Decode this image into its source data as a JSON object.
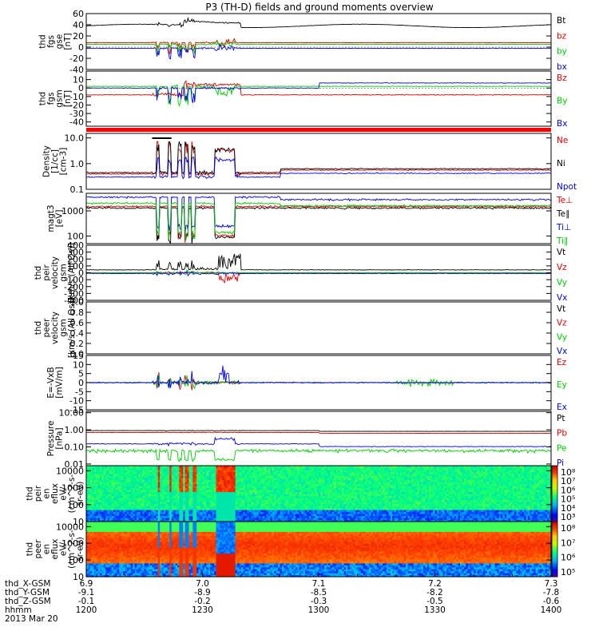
{
  "title": "P3 (TH-D) fields and ground moments overview",
  "colors": {
    "black": "#000000",
    "red": "#e00000",
    "green": "#00cc00",
    "blue": "#0000ee"
  },
  "chart_data": [
    {
      "id": "fgs_gse",
      "type": "line",
      "ylabel": [
        "thd",
        "fgs",
        "gse",
        "[nT]"
      ],
      "yscale": "linear",
      "ylim": [
        -40,
        60
      ],
      "yticks": [
        60,
        40,
        20,
        0,
        -20,
        -40
      ],
      "yticklabels": [
        "60",
        "40",
        "20",
        "0",
        "-20",
        "-40"
      ],
      "series": [
        {
          "name": "Bt",
          "color": "#000000",
          "base": 38
        },
        {
          "name": "bz",
          "color": "#e00000",
          "base": 8
        },
        {
          "name": "by",
          "color": "#00cc00",
          "base": 5
        },
        {
          "name": "bx",
          "color": "#0000ee",
          "base": -2
        }
      ],
      "legend": [
        "Bt",
        "bz",
        "by",
        "bx"
      ]
    },
    {
      "id": "fgs_gsm",
      "type": "line",
      "ylabel": [
        "thd",
        "fgs",
        "gsm",
        "[nT]"
      ],
      "yscale": "linear",
      "ylim": [
        -45,
        20
      ],
      "yticks": [
        10,
        0,
        -10,
        -20,
        -30,
        -40
      ],
      "yticklabels": [
        "10",
        "0",
        "-10",
        "-20",
        "-30",
        "-40"
      ],
      "series": [
        {
          "name": "Bz",
          "color": "#e00000",
          "base": -8
        },
        {
          "name": "By",
          "color": "#00cc00",
          "base": 2
        },
        {
          "name": "Bx",
          "color": "#0000ee",
          "base": 0
        }
      ],
      "legend": [
        "Bz",
        "By",
        "Bx"
      ]
    },
    {
      "id": "density",
      "type": "line",
      "ylabel": [
        "Density",
        "[1/cc]",
        "[cm-3]"
      ],
      "yscale": "log",
      "ylim": [
        0.1,
        15
      ],
      "yticks": [
        10,
        1,
        0.1
      ],
      "yticklabels": [
        "10.0",
        "1.0",
        "0.1"
      ],
      "series": [
        {
          "name": "Ne",
          "color": "#e00000",
          "base": 0.4
        },
        {
          "name": "Ni",
          "color": "#000000",
          "base": 0.45
        },
        {
          "name": "Npot",
          "color": "#0000ee",
          "base": 0.3
        }
      ],
      "legend": [
        "Ne",
        "Ni",
        "Npot"
      ]
    },
    {
      "id": "temperature",
      "type": "line",
      "ylabel": [
        "magt3",
        "[eV]"
      ],
      "yscale": "log",
      "ylim": [
        50,
        5000
      ],
      "yticks": [
        1000,
        100
      ],
      "yticklabels": [
        "1000",
        "100"
      ],
      "series": [
        {
          "name": "Te⊥",
          "color": "#e00000",
          "base": 1500
        },
        {
          "name": "Te∥",
          "color": "#000000",
          "base": 1300
        },
        {
          "name": "Ti⊥",
          "color": "#0000ee",
          "base": 3500
        },
        {
          "name": "Ti∥",
          "color": "#00cc00",
          "base": 2000
        }
      ],
      "legend": [
        "Te⊥",
        "Te∥",
        "Ti⊥",
        "Ti∥"
      ]
    },
    {
      "id": "peir_velocity",
      "type": "line",
      "ylabel": [
        "thd",
        "peir",
        "velocity",
        "gsm",
        "[km/s (All Qs)]"
      ],
      "yscale": "linear",
      "ylim": [
        -400,
        400
      ],
      "yticks": [
        400,
        300,
        200,
        100,
        0,
        -100,
        -200,
        -300,
        -400
      ],
      "yticklabels": [
        "400",
        "300",
        "200",
        "100",
        "0",
        "-100",
        "-200",
        "-300",
        "-400"
      ],
      "series": [
        {
          "name": "Vt",
          "color": "#000000",
          "base": 50
        },
        {
          "name": "Vz",
          "color": "#e00000",
          "base": 0
        },
        {
          "name": "Vy",
          "color": "#00cc00",
          "base": 0
        },
        {
          "name": "Vx",
          "color": "#0000ee",
          "base": -10
        }
      ],
      "legend": [
        "Vt",
        "Vz",
        "Vy",
        "Vx"
      ]
    },
    {
      "id": "peer_velocity",
      "type": "line",
      "ylabel": [
        "thd",
        "peer",
        "velocity",
        "gsm",
        "[km/s (All Qs)]"
      ],
      "yscale": "linear",
      "ylim": [
        0,
        1
      ],
      "yticks": [
        1,
        0.8,
        0.6,
        0.4,
        0.2,
        0
      ],
      "yticklabels": [
        "1.0",
        "0.8",
        "0.6",
        "0.4",
        "0.2",
        "0.0"
      ],
      "series": [],
      "legend": [
        "Vt",
        "Vz",
        "Vy",
        "Vx"
      ]
    },
    {
      "id": "efield",
      "type": "line",
      "ylabel": [
        "E=-VxB",
        "[mV/m]"
      ],
      "yscale": "linear",
      "ylim": [
        -15,
        15
      ],
      "yticks": [
        15,
        10,
        5,
        0,
        -5,
        -10,
        -15
      ],
      "yticklabels": [
        "15",
        "10",
        "5",
        "0",
        "-5",
        "-10",
        "-15"
      ],
      "series": [
        {
          "name": "Ez",
          "color": "#e00000",
          "base": 0
        },
        {
          "name": "Ey",
          "color": "#00cc00",
          "base": 0
        },
        {
          "name": "Ex",
          "color": "#0000ee",
          "base": 0
        }
      ],
      "legend": [
        "Ez",
        "Ey",
        "Ex"
      ]
    },
    {
      "id": "pressure",
      "type": "line",
      "ylabel": [
        "Pressure",
        "[nPa]"
      ],
      "yscale": "log",
      "ylim": [
        0.008,
        12
      ],
      "yticks": [
        10,
        1,
        0.1,
        0.01
      ],
      "yticklabels": [
        "10.00",
        "1.00",
        "0.10",
        "0.01"
      ],
      "series": [
        {
          "name": "Pt",
          "color": "#000000",
          "base": 0.9
        },
        {
          "name": "Pb",
          "color": "#e00000",
          "base": 0.7
        },
        {
          "name": "Pe",
          "color": "#00cc00",
          "base": 0.06
        },
        {
          "name": "Pi",
          "color": "#0000ee",
          "base": 0.15
        }
      ],
      "legend": [
        "Pt",
        "Pb",
        "Pe",
        "Pi"
      ]
    },
    {
      "id": "peir_spec",
      "type": "heatmap",
      "ylabel": [
        "thd",
        "peir",
        "en",
        "eflux",
        "eV/",
        "(cm^2-s-",
        "sr-eV)"
      ],
      "yscale": "log",
      "ylim": [
        10,
        20000
      ],
      "yticks": [
        10000,
        1000,
        100,
        10
      ],
      "yticklabels": [
        "10000",
        "1000",
        "100",
        "10"
      ],
      "colorbar": {
        "range": [
          1000,
          100000000
        ],
        "labels": [
          "10⁸",
          "10⁷",
          "10⁶",
          "10⁵",
          "10⁴",
          "10³"
        ]
      }
    },
    {
      "id": "peer_spec",
      "type": "heatmap",
      "ylabel": [
        "thd",
        "peer",
        "en",
        "eflux",
        "eV/",
        "(cm^2-s-",
        "sr-eV)"
      ],
      "yscale": "log",
      "ylim": [
        10,
        20000
      ],
      "yticks": [
        10000,
        1000,
        100,
        10
      ],
      "yticklabels": [
        "10000",
        "1000",
        "100",
        "10"
      ],
      "colorbar": {
        "range": [
          30000,
          100000000
        ],
        "labels": [
          "10⁸",
          "10⁷",
          "10⁶",
          "10⁵"
        ]
      }
    }
  ],
  "xaxis": {
    "rows": [
      {
        "label": "thd_X-GSM",
        "values": [
          "6.9",
          "7.0",
          "7.1",
          "7.2",
          "7.3"
        ]
      },
      {
        "label": "thd_Y-GSM",
        "values": [
          "-9.1",
          "-8.9",
          "-8.5",
          "-8.2",
          "-7.8"
        ]
      },
      {
        "label": "thd_Z-GSM",
        "values": [
          "-0.1",
          "-0.2",
          "-0.3",
          "-0.5",
          "-0.6"
        ]
      },
      {
        "label": "hhmm",
        "values": [
          "1200",
          "1230",
          "1300",
          "1330",
          "1400"
        ]
      }
    ],
    "date": "2013 Mar 20",
    "time_range": [
      1200,
      1400
    ]
  },
  "annotations": {
    "bar_color": "#ff0000"
  }
}
